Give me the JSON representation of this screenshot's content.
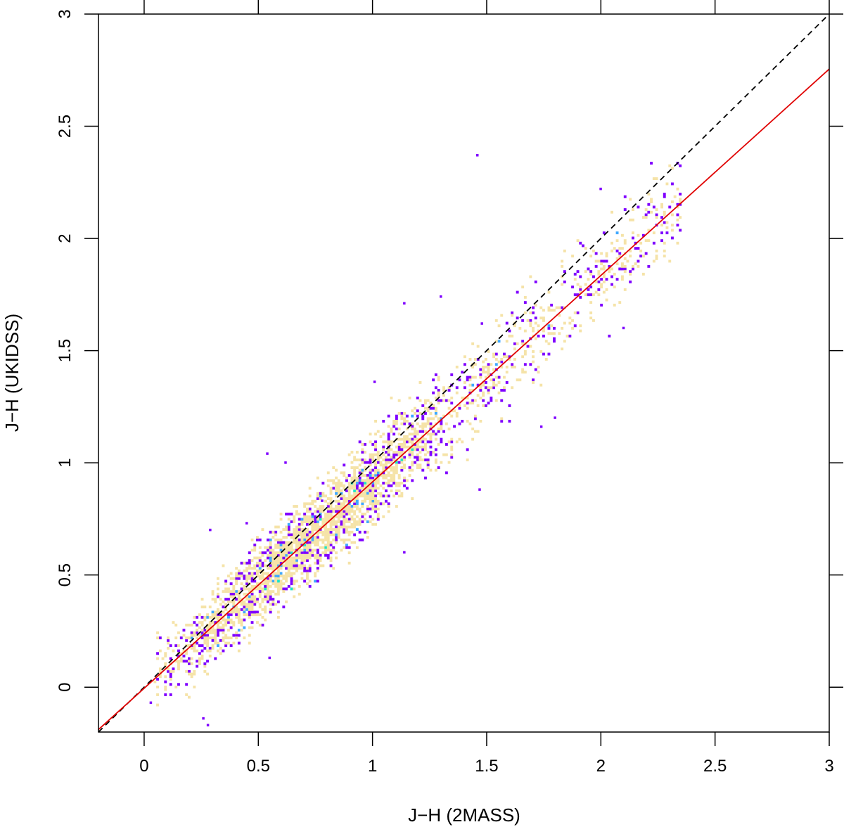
{
  "chart_data": {
    "type": "scatter",
    "title": "",
    "xlabel": "J−H (2MASS)",
    "ylabel": "J−H (UKIDSS)",
    "xlim": [
      -0.2,
      3
    ],
    "ylim": [
      -0.2,
      3
    ],
    "x_ticks": [
      "0",
      "0.5",
      "1",
      "1.5",
      "2",
      "2.5",
      "3"
    ],
    "y_ticks": [
      "0",
      "0.5",
      "1",
      "1.5",
      "2",
      "2.5",
      "3"
    ],
    "grid": false,
    "legend": "none",
    "point_density": "2D histogram, density-coloured",
    "density_colors": [
      "#7f00ff",
      "#3fa9ff",
      "#19e6c8",
      "#3ef03e",
      "#e8ff00",
      "#ffd700",
      "#f5e3a8"
    ],
    "density_bulk": {
      "x_range": [
        0.05,
        2.35
      ],
      "relation": "y = 0.92 * x - 0.005",
      "scatter_width": 0.09,
      "peak_x": 0.7
    },
    "reference_lines": [
      {
        "label": "",
        "style": "dashed",
        "color": "#000000",
        "x": [
          -0.2,
          3
        ],
        "y": [
          -0.2,
          3
        ]
      },
      {
        "label": "",
        "style": "solid",
        "color": "#e00000",
        "x": [
          -0.2,
          3
        ],
        "y": [
          -0.189,
          2.755
        ]
      }
    ],
    "outliers": [
      {
        "x": 1.46,
        "y": 2.37
      },
      {
        "x": 1.14,
        "y": 1.71
      },
      {
        "x": 1.3,
        "y": 1.74
      },
      {
        "x": 0.54,
        "y": 1.04
      },
      {
        "x": 0.78,
        "y": 0.83
      },
      {
        "x": 0.62,
        "y": 1.0
      },
      {
        "x": 1.47,
        "y": 0.88
      },
      {
        "x": 1.14,
        "y": 0.6
      },
      {
        "x": 0.55,
        "y": 0.13
      },
      {
        "x": 0.28,
        "y": -0.17
      },
      {
        "x": 0.26,
        "y": -0.14
      },
      {
        "x": 0.03,
        "y": -0.07
      },
      {
        "x": 1.48,
        "y": 1.62
      },
      {
        "x": 1.8,
        "y": 1.2
      },
      {
        "x": 2.0,
        "y": 2.22
      },
      {
        "x": 1.74,
        "y": 1.16
      },
      {
        "x": 0.29,
        "y": 0.7
      },
      {
        "x": 0.45,
        "y": 0.73
      },
      {
        "x": 2.1,
        "y": 1.6
      },
      {
        "x": 1.01,
        "y": 1.36
      }
    ]
  }
}
